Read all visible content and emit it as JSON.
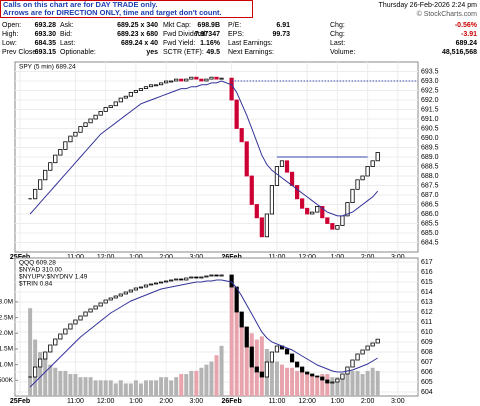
{
  "notice": [
    "Calls on this chart are for DAY TRADE only.",
    "Arrows are for DIRECTION ONLY, time and target don't count."
  ],
  "date": "Thursday 26-Feb-2026 2:24 pm",
  "logo": "© StockCharts.com",
  "quote": [
    [
      {
        "label": "Open:",
        "value": "693.28"
      },
      {
        "label": "Ask:",
        "value": "689.25 x 340"
      },
      {
        "label": "Mkt Cap:",
        "value": "698.9B"
      },
      {
        "label": "P/E:",
        "value": "6.91"
      },
      {
        "label": "Chg:",
        "value": "-0.56%"
      }
    ],
    [
      {
        "label": "High:",
        "value": "693.30"
      },
      {
        "label": "Bid:",
        "value": "689.23 x 680"
      },
      {
        "label": "Fwd Dividend:",
        "value": "7.97347"
      },
      {
        "label": "EPS:",
        "value": "99.73"
      },
      {
        "label": "Chg:",
        "value": "-3.91"
      }
    ],
    [
      {
        "label": "Low:",
        "value": "684.35"
      },
      {
        "label": "Last:",
        "value": "689.24 x 40"
      },
      {
        "label": "Fwd Yield:",
        "value": "1.16%"
      },
      {
        "label": "Last Earnings:"
      },
      {
        "label": "Last:",
        "value": "689.24"
      }
    ],
    [
      {
        "label": "Prev Close:",
        "value": "693.15"
      },
      {
        "label": "Optionable:",
        "value": "yes"
      },
      {
        "label": "SCTR (ETF):",
        "value": "49.5"
      },
      {
        "label": "Next Earnings:"
      },
      {
        "label": "Volume:",
        "value": "48,516,568"
      }
    ]
  ],
  "chart_data": [
    {
      "type": "candlestick",
      "legend_labels": [
        "SPY (5 min) 689.24"
      ],
      "x": [
        3,
        4,
        5,
        6,
        7,
        8,
        9,
        10,
        11,
        12,
        13,
        14,
        15,
        16,
        17,
        18,
        19,
        20,
        21,
        22,
        23,
        24,
        25,
        26,
        27,
        28,
        29,
        30,
        31,
        32,
        33,
        34,
        35,
        36,
        37,
        38,
        39,
        40,
        41,
        43,
        44,
        45,
        46,
        47,
        48,
        49,
        50,
        51,
        52,
        53,
        54,
        55,
        56,
        57,
        58,
        59,
        60,
        61,
        62,
        63,
        64,
        65,
        66,
        67,
        68,
        69,
        70,
        71,
        72
      ],
      "xlim": [
        0,
        80
      ],
      "xticks": [
        {
          "value": 1,
          "label": "25Feb"
        },
        {
          "value": 12,
          "label": "11:00"
        },
        {
          "value": 18,
          "label": "12:00"
        },
        {
          "value": 24,
          "label": "1:00"
        },
        {
          "value": 30,
          "label": "2:00"
        },
        {
          "value": 36,
          "label": "3:00"
        },
        {
          "value": 43,
          "label": "26Feb"
        },
        {
          "value": 52,
          "label": "11:00"
        },
        {
          "value": 58,
          "label": "12:00"
        },
        {
          "value": 64,
          "label": "1:00"
        },
        {
          "value": 70,
          "label": "2:00"
        },
        {
          "value": 76,
          "label": "3:00"
        }
      ],
      "ylim": [
        684,
        694
      ],
      "yticks": [
        684.5,
        {
          "value": 685,
          "label": "685.0"
        },
        685.5,
        {
          "value": 686,
          "label": "686.0"
        },
        686.5,
        {
          "value": 687,
          "label": "687.0"
        },
        687.5,
        {
          "value": 688,
          "label": "688.0"
        },
        688.5,
        {
          "value": 689,
          "label": "689.0"
        },
        689.5,
        {
          "value": 690,
          "label": "690.0"
        },
        690.5,
        {
          "value": 691,
          "label": "691.0"
        },
        691.5,
        {
          "value": 692,
          "label": "692.0"
        },
        692.5,
        {
          "value": 693,
          "label": "693.0"
        },
        693.5
      ],
      "grid": true,
      "hlines": [
        {
          "value": 689,
          "from": 52,
          "to": 70,
          "color": "#3344aa"
        },
        {
          "value": 693,
          "from": 43,
          "to": 80,
          "color": "#3344aa",
          "dash": true
        }
      ],
      "series": [
        {
          "style": "candle",
          "up_color": "#000000",
          "down_color": "#cc0033",
          "values": [
            686.8,
            687.3,
            687.8,
            688.3,
            688.7,
            689.1,
            689.4,
            689.8,
            690.1,
            690.3,
            690.6,
            690.8,
            691.0,
            691.2,
            691.4,
            691.6,
            691.7,
            691.9,
            692.1,
            692.2,
            692.4,
            692.5,
            692.6,
            692.7,
            692.8,
            692.8,
            692.9,
            693.0,
            693.0,
            693.1,
            693.0,
            693.1,
            693.2,
            693.1,
            693.0,
            693.1,
            693.2,
            693.1,
            693.15,
            692.0,
            690.5,
            689.8,
            688.0,
            686.5,
            685.8,
            684.8,
            686.0,
            687.5,
            688.5,
            688.8,
            688.2,
            687.5,
            686.8,
            686.3,
            686.0,
            686.1,
            686.4,
            685.8,
            685.5,
            685.2,
            685.4,
            685.9,
            686.6,
            687.3,
            687.8,
            688.0,
            688.5,
            688.8,
            689.24
          ]
        },
        {
          "style": "line",
          "color": "#333399",
          "values": [
            686.0,
            686.3,
            686.6,
            686.9,
            687.2,
            687.5,
            687.8,
            688.1,
            688.4,
            688.7,
            689.0,
            689.3,
            689.6,
            689.9,
            690.2,
            690.4,
            690.6,
            690.8,
            691.0,
            691.2,
            691.4,
            691.6,
            691.8,
            691.9,
            692.0,
            692.1,
            692.2,
            692.3,
            692.4,
            692.5,
            692.6,
            692.6,
            692.7,
            692.7,
            692.8,
            692.8,
            692.9,
            692.9,
            693.0,
            692.8,
            692.4,
            691.8,
            691.2,
            690.5,
            689.8,
            689.1,
            688.6,
            688.3,
            688.1,
            687.9,
            687.7,
            687.5,
            687.3,
            687.1,
            686.9,
            686.7,
            686.5,
            686.3,
            686.1,
            686.0,
            685.9,
            685.9,
            686.0,
            686.1,
            686.3,
            686.5,
            686.7,
            686.9,
            687.2
          ]
        }
      ]
    },
    {
      "type": "candlestick",
      "legend_labels": [
        "QQQ 609.28",
        "$NYAD 310.00",
        "$NYUPV:$NYDNV 1.49",
        "$TRIN 0.84"
      ],
      "x": [
        3,
        4,
        5,
        6,
        7,
        8,
        9,
        10,
        11,
        12,
        13,
        14,
        15,
        16,
        17,
        18,
        19,
        20,
        21,
        22,
        23,
        24,
        25,
        26,
        27,
        28,
        29,
        30,
        31,
        32,
        33,
        34,
        35,
        36,
        37,
        38,
        39,
        40,
        41,
        43,
        44,
        45,
        46,
        47,
        48,
        49,
        50,
        51,
        52,
        53,
        54,
        55,
        56,
        57,
        58,
        59,
        60,
        61,
        62,
        63,
        64,
        65,
        66,
        67,
        68,
        69,
        70,
        71,
        72
      ],
      "xlim": [
        0,
        80
      ],
      "xticks": [
        {
          "value": 1,
          "label": "25Feb"
        },
        {
          "value": 12,
          "label": "11:00"
        },
        {
          "value": 18,
          "label": "12:00"
        },
        {
          "value": 24,
          "label": "1:00"
        },
        {
          "value": 30,
          "label": "2:00"
        },
        {
          "value": 36,
          "label": "3:00"
        },
        {
          "value": 43,
          "label": "26Feb"
        },
        {
          "value": 52,
          "label": "11:00"
        },
        {
          "value": 58,
          "label": "12:00"
        },
        {
          "value": 64,
          "label": "1:00"
        },
        {
          "value": 70,
          "label": "2:00"
        },
        {
          "value": 76,
          "label": "3:00"
        }
      ],
      "ylim": [
        603.6,
        617.4
      ],
      "yticks": [
        604,
        605,
        606,
        607,
        608,
        609,
        610,
        611,
        612,
        613,
        614,
        615,
        616,
        617
      ],
      "y2lim": [
        0,
        4.4
      ],
      "y2ticks": [
        {
          "value": 0.5,
          "label": "500K"
        },
        {
          "value": 1,
          "label": "1.0M"
        },
        {
          "value": 1.5,
          "label": "1.5M"
        },
        {
          "value": 2,
          "label": "2.0M"
        },
        {
          "value": 2.5,
          "label": "2.5M"
        },
        {
          "value": 3,
          "label": "3.0M"
        }
      ],
      "grid": true,
      "series": [
        {
          "style": "candle",
          "up_color": "#000000",
          "down_color": "#000000",
          "values": [
            605.5,
            606.5,
            607.3,
            608.0,
            608.7,
            609.3,
            609.8,
            610.3,
            610.8,
            611.2,
            611.6,
            612.0,
            612.3,
            612.6,
            612.9,
            613.2,
            613.4,
            613.6,
            613.8,
            614.0,
            614.2,
            614.4,
            614.5,
            614.7,
            614.8,
            614.9,
            615.0,
            615.1,
            615.2,
            615.3,
            615.2,
            615.4,
            615.5,
            615.4,
            615.5,
            615.6,
            615.7,
            615.6,
            615.7,
            614.5,
            612.0,
            610.5,
            608.5,
            606.5,
            606.0,
            605.5,
            607.0,
            608.0,
            608.6,
            608.3,
            607.8,
            607.0,
            606.5,
            606.0,
            605.8,
            605.6,
            605.5,
            605.2,
            604.9,
            605.0,
            605.3,
            605.8,
            606.5,
            607.2,
            607.8,
            608.2,
            608.6,
            608.9,
            609.28
          ]
        },
        {
          "style": "line",
          "color": "#333399",
          "values": [
            604.5,
            605.0,
            605.5,
            606.0,
            606.5,
            607.0,
            607.5,
            608.0,
            608.5,
            609.0,
            609.5,
            609.9,
            610.3,
            610.7,
            611.1,
            611.5,
            611.9,
            612.2,
            612.5,
            612.8,
            613.1,
            613.3,
            613.5,
            613.7,
            613.9,
            614.1,
            614.3,
            614.4,
            614.5,
            614.6,
            614.7,
            614.8,
            614.9,
            615.0,
            615.0,
            615.1,
            615.1,
            615.2,
            615.2,
            615.0,
            614.4,
            613.6,
            612.7,
            611.8,
            610.9,
            610.0,
            609.4,
            609.0,
            608.8,
            608.6,
            608.4,
            608.2,
            607.9,
            607.6,
            607.3,
            607.0,
            606.7,
            606.5,
            606.3,
            606.1,
            606.0,
            606.0,
            606.1,
            606.2,
            606.4,
            606.6,
            606.8,
            607.1,
            607.4
          ]
        },
        {
          "style": "bar",
          "axis": "y2",
          "up_color": "#b4b4b4",
          "down_color": "#e8a4ac",
          "values": [
            2.8,
            1.8,
            1.4,
            1.2,
            1.0,
            0.9,
            0.8,
            0.8,
            0.7,
            0.7,
            0.6,
            0.6,
            0.6,
            0.5,
            0.5,
            0.5,
            0.5,
            0.4,
            0.5,
            0.4,
            0.4,
            0.5,
            0.4,
            0.5,
            0.5,
            0.5,
            0.6,
            0.6,
            0.5,
            0.6,
            0.7,
            0.7,
            0.8,
            0.8,
            0.9,
            1.0,
            1.1,
            1.3,
            1.6,
            3.6,
            2.9,
            2.5,
            2.2,
            2.0,
            1.8,
            1.9,
            1.5,
            1.3,
            1.1,
            1.0,
            0.9,
            0.9,
            0.8,
            0.8,
            0.7,
            0.7,
            0.6,
            0.7,
            0.7,
            0.6,
            0.6,
            0.7,
            0.7,
            0.8,
            0.8,
            0.7,
            0.8,
            0.9,
            0.8
          ]
        }
      ]
    }
  ]
}
